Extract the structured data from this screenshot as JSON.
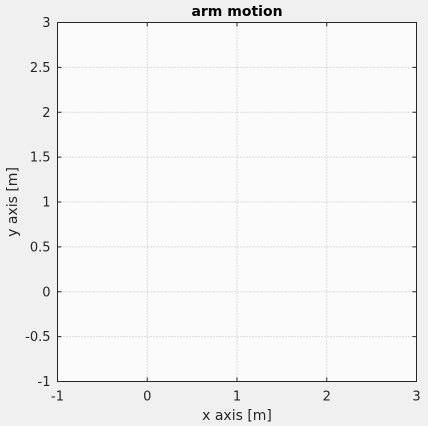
{
  "chart_data": {
    "type": "line",
    "title": "arm motion",
    "xlabel": "x axis [m]",
    "ylabel": "y axis [m]",
    "xlim": [
      -1,
      3
    ],
    "ylim": [
      -1,
      3
    ],
    "xticks": [
      -1,
      0,
      1,
      2,
      3
    ],
    "xtick_labels": [
      "-1",
      "0",
      "1",
      "2",
      "3"
    ],
    "yticks": [
      -1,
      -0.5,
      0,
      0.5,
      1,
      1.5,
      2,
      2.5,
      3
    ],
    "ytick_labels": [
      "-1",
      "-0.5",
      "0",
      "0.5",
      "1",
      "1.5",
      "2",
      "2.5",
      "3"
    ],
    "grid": true,
    "series": []
  },
  "colors": {
    "figure_background": "#f0f0f0",
    "axes_background": "#fbfbfb",
    "axes_color": "#262626",
    "grid_color": "#bcbcbc"
  }
}
